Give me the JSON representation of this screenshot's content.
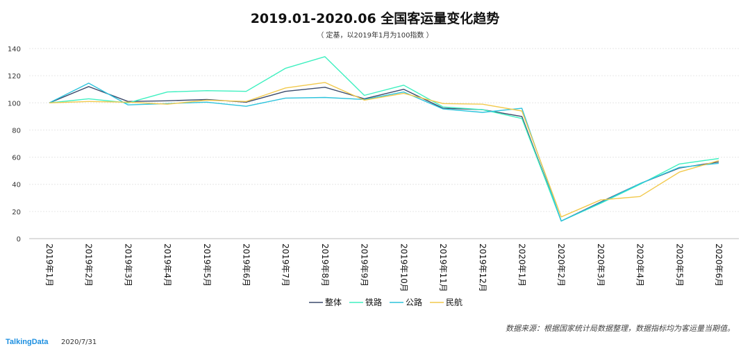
{
  "title": "2019.01-2020.06  全国客运量变化趋势",
  "subtitle": "（ 定基，以2019年1月为100指数 ）",
  "source": "数据来源：根据国家统计局数据整理，数据指标均为客运量当期值。",
  "brand": "TalkingData",
  "date": "2020/7/31",
  "chart_data": {
    "type": "line",
    "title": "2019.01-2020.06  全国客运量变化趋势",
    "subtitle": "（ 定基，以2019年1月为100指数 ）",
    "xlabel": "",
    "ylabel": "",
    "ylim": [
      0,
      140
    ],
    "yticks": [
      0,
      20,
      40,
      60,
      80,
      100,
      120,
      140
    ],
    "grid": true,
    "legend_position": "bottom",
    "categories": [
      "2019年1月",
      "2019年2月",
      "2019年3月",
      "2019年4月",
      "2019年5月",
      "2019年6月",
      "2019年7月",
      "2019年8月",
      "2019年9月",
      "2019年10月",
      "2019年11月",
      "2019年12月",
      "2020年1月",
      "2020年2月",
      "2020年3月",
      "2020年4月",
      "2020年5月",
      "2020年6月"
    ],
    "series": [
      {
        "name": "整体",
        "color": "#3b4a6b",
        "values": [
          100,
          112,
          101,
          101.5,
          102.5,
          100.5,
          108.5,
          111.5,
          103,
          110,
          96,
          95,
          90,
          13,
          27,
          40.5,
          52,
          56.5
        ]
      },
      {
        "name": "铁路",
        "color": "#3ef0c0",
        "values": [
          100,
          103,
          100,
          108,
          109,
          108.5,
          125.5,
          134,
          105.5,
          113,
          97,
          95,
          88.5,
          13,
          26,
          40,
          55,
          59
        ]
      },
      {
        "name": "公路",
        "color": "#2cc3dc",
        "values": [
          100,
          114.5,
          98.5,
          99.5,
          100.5,
          97.5,
          103.5,
          104,
          102.5,
          108,
          95.5,
          93,
          96,
          13,
          26.5,
          40.5,
          52.5,
          55.5
        ]
      },
      {
        "name": "民航",
        "color": "#f2c94c",
        "values": [
          100,
          101,
          100.5,
          99,
          102,
          101,
          111,
          115,
          102,
          107,
          99.5,
          99,
          94,
          16,
          28.5,
          31,
          49,
          57.5
        ]
      }
    ]
  }
}
